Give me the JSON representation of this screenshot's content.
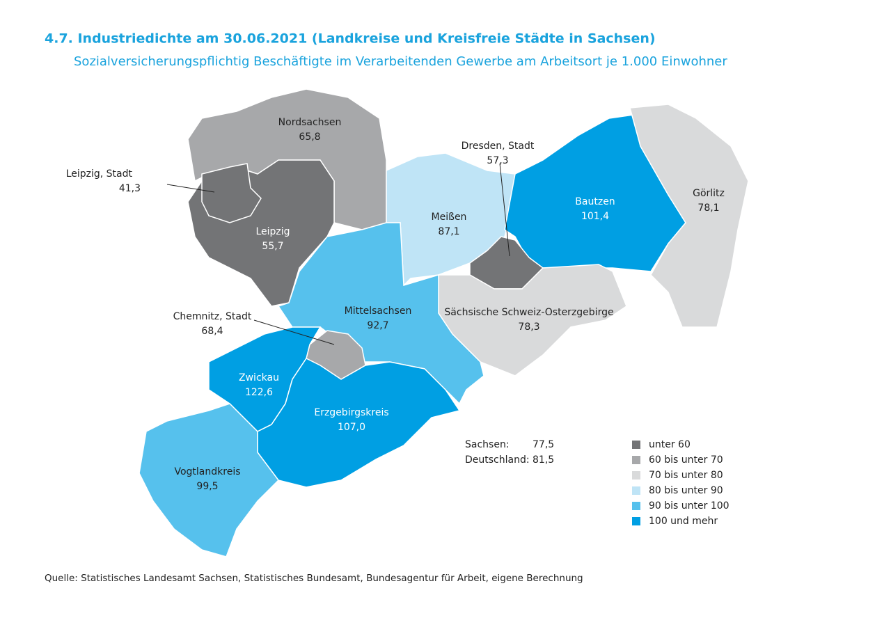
{
  "header": {
    "title": "4.7. Industriedichte am 30.06.2021 (Landkreise und Kreisfreie Städte in Sachsen)",
    "subtitle": "Sozialversicherungspflichtig Beschäftigte im Verarbeitenden Gewerbe am Arbeitsort je 1.000 Einwohner"
  },
  "map": {
    "regions": [
      {
        "name": "Nordsachsen",
        "value": 65.8,
        "label": "65,8",
        "color": "#a7a8aa"
      },
      {
        "name": "Leipzig",
        "value": 55.7,
        "label": "55,7",
        "color": "#737476"
      },
      {
        "name": "Leipzig, Stadt",
        "value": 41.3,
        "label": "41,3",
        "color": "#737476"
      },
      {
        "name": "Meißen",
        "value": 87.1,
        "label": "87,1",
        "color": "#bfe4f6"
      },
      {
        "name": "Bautzen",
        "value": 101.4,
        "label": "101,4",
        "color": "#009fe3"
      },
      {
        "name": "Görlitz",
        "value": 78.1,
        "label": "78,1",
        "color": "#d9dadb"
      },
      {
        "name": "Dresden, Stadt",
        "value": 57.3,
        "label": "57,3",
        "color": "#737476"
      },
      {
        "name": "Sächsische Schweiz-Osterzgebirge",
        "value": 78.3,
        "label": "78,3",
        "color": "#d9dadb"
      },
      {
        "name": "Mittelsachsen",
        "value": 92.7,
        "label": "92,7",
        "color": "#56c1ed"
      },
      {
        "name": "Chemnitz, Stadt",
        "value": 68.4,
        "label": "68,4",
        "color": "#a7a8aa"
      },
      {
        "name": "Zwickau",
        "value": 122.6,
        "label": "122,6",
        "color": "#009fe3"
      },
      {
        "name": "Erzgebirgskreis",
        "value": 107.0,
        "label": "107,0",
        "color": "#009fe3"
      },
      {
        "name": "Vogtlandkreis",
        "value": 99.5,
        "label": "99,5",
        "color": "#56c1ed"
      }
    ],
    "summary": [
      {
        "name": "Sachsen:",
        "value": 77.5,
        "label": "77,5"
      },
      {
        "name": "Deutschland:",
        "value": 81.5,
        "label": "81,5"
      }
    ],
    "legend": [
      {
        "label": "unter 60",
        "color": "#737476"
      },
      {
        "label": "60 bis unter 70",
        "color": "#a7a8aa"
      },
      {
        "label": "70 bis unter 80",
        "color": "#d9dadb"
      },
      {
        "label": "80 bis unter 90",
        "color": "#bfe4f6"
      },
      {
        "label": "90 bis unter 100",
        "color": "#56c1ed"
      },
      {
        "label": "100 und mehr",
        "color": "#009fe3"
      }
    ]
  },
  "source": "Quelle: Statistisches Landesamt Sachsen, Statistisches Bundesamt, Bundesagentur für Arbeit, eigene Berechnung"
}
